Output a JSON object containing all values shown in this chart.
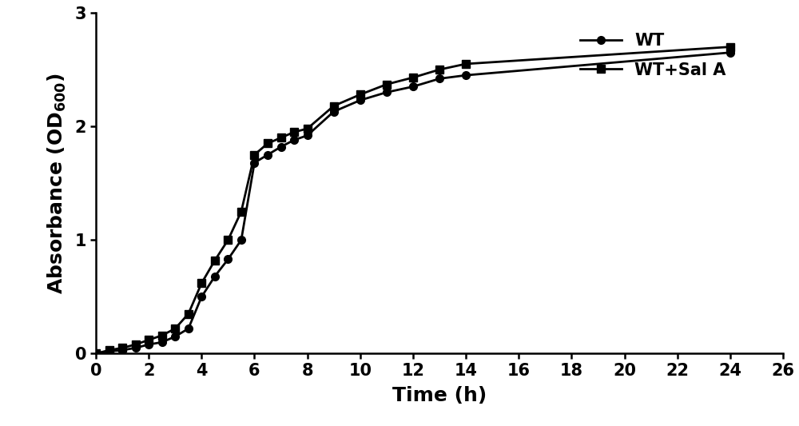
{
  "wt_x": [
    0,
    0.5,
    1.0,
    1.5,
    2.0,
    2.5,
    3.0,
    3.5,
    4.0,
    4.5,
    5.0,
    5.5,
    6.0,
    6.5,
    7.0,
    7.5,
    8.0,
    9.0,
    10.0,
    11.0,
    12.0,
    13.0,
    14.0,
    24.0
  ],
  "wt_y": [
    0.0,
    0.02,
    0.03,
    0.05,
    0.08,
    0.1,
    0.15,
    0.22,
    0.5,
    0.68,
    0.83,
    1.0,
    1.68,
    1.75,
    1.82,
    1.88,
    1.92,
    2.13,
    2.23,
    2.3,
    2.35,
    2.42,
    2.45,
    2.65
  ],
  "sal_x": [
    0,
    0.5,
    1.0,
    1.5,
    2.0,
    2.5,
    3.0,
    3.5,
    4.0,
    4.5,
    5.0,
    5.5,
    6.0,
    6.5,
    7.0,
    7.5,
    8.0,
    9.0,
    10.0,
    11.0,
    12.0,
    13.0,
    14.0,
    24.0
  ],
  "sal_y": [
    0.0,
    0.03,
    0.05,
    0.08,
    0.12,
    0.16,
    0.22,
    0.35,
    0.62,
    0.82,
    1.0,
    1.25,
    1.75,
    1.85,
    1.9,
    1.95,
    1.98,
    2.18,
    2.28,
    2.37,
    2.43,
    2.5,
    2.55,
    2.7
  ],
  "xlabel": "Time (h)",
  "ylabel_top": "Absorbance (OD",
  "ylabel_sub": "600",
  "ylabel_end": ")",
  "xlim": [
    0,
    26
  ],
  "ylim": [
    0,
    3.0
  ],
  "xticks": [
    0,
    2,
    4,
    6,
    8,
    10,
    12,
    14,
    16,
    18,
    20,
    22,
    24,
    26
  ],
  "yticks": [
    0,
    1,
    2,
    3
  ],
  "legend_wt": "WT",
  "legend_sal": "WT+Sal A",
  "line_color": "#000000",
  "background_color": "#ffffff",
  "label_fontsize": 18,
  "tick_fontsize": 15,
  "legend_fontsize": 15,
  "linewidth": 2.0,
  "markersize": 7
}
